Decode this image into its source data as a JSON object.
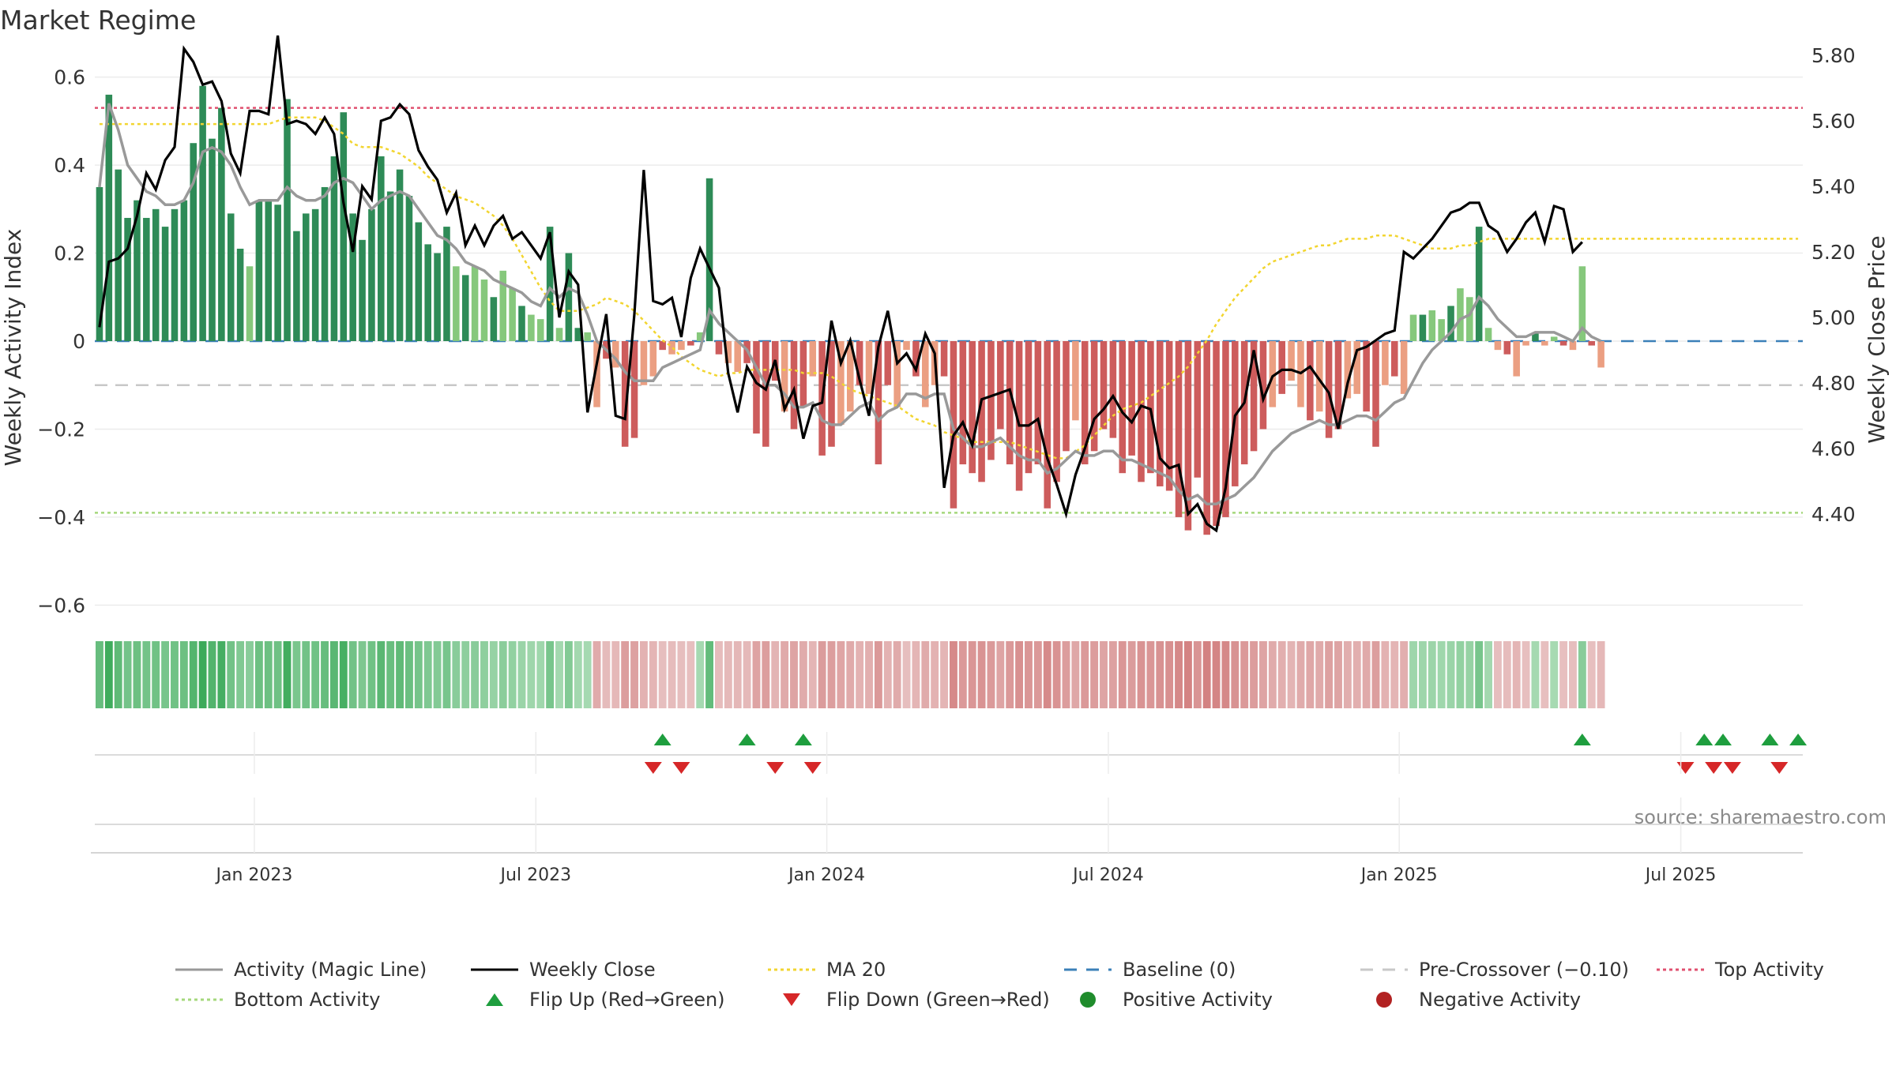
{
  "chart_data": {
    "type": "bar",
    "title": "Market Regime",
    "source": "source: sharemaestro.com",
    "y_left_label": "Weekly Activity Index",
    "y_right_label": "Weekly Close Price",
    "y_left_ticks": [
      "0.6",
      "0.4",
      "0.2",
      "0",
      "−0.2",
      "−0.4",
      "−0.6"
    ],
    "y_left_tick_values": [
      0.6,
      0.4,
      0.2,
      0,
      -0.2,
      -0.4,
      -0.6
    ],
    "y_left_range": [
      -0.63,
      0.63
    ],
    "y_right_ticks": [
      "5.80",
      "5.60",
      "5.40",
      "5.20",
      "5.00",
      "4.80",
      "4.60",
      "4.40"
    ],
    "y_right_tick_values": [
      5.8,
      5.6,
      5.4,
      5.2,
      5.0,
      4.8,
      4.6,
      4.4
    ],
    "y_right_range": [
      4.27,
      5.87
    ],
    "x_ticks": [
      "Jan 2023",
      "Jul 2023",
      "Jan 2024",
      "Jul 2024",
      "Jan 2025",
      "Jul 2025"
    ],
    "x_tick_positions_week": [
      17,
      47,
      78,
      108,
      139,
      169
    ],
    "weeks": 182,
    "reference_lines": {
      "baseline": 0,
      "pre_crossover": -0.1,
      "top_activity": 0.53,
      "bottom_activity": -0.39
    },
    "activity": [
      0.35,
      0.56,
      0.39,
      0.28,
      0.32,
      0.28,
      0.3,
      0.26,
      0.3,
      0.32,
      0.45,
      0.58,
      0.46,
      0.53,
      0.29,
      0.21,
      0.17,
      0.32,
      0.32,
      0.31,
      0.55,
      0.25,
      0.29,
      0.3,
      0.35,
      0.42,
      0.52,
      0.29,
      0.23,
      0.3,
      0.42,
      0.34,
      0.39,
      0.33,
      0.27,
      0.22,
      0.2,
      0.26,
      0.17,
      0.15,
      0.17,
      0.14,
      0.1,
      0.16,
      0.12,
      0.08,
      0.06,
      0.05,
      0.26,
      0.03,
      0.2,
      0.03,
      0.02,
      -0.15,
      -0.04,
      -0.06,
      -0.24,
      -0.22,
      -0.1,
      -0.08,
      -0.02,
      -0.03,
      -0.02,
      -0.01,
      0.02,
      0.37,
      -0.03,
      -0.05,
      -0.07,
      -0.05,
      -0.21,
      -0.24,
      -0.09,
      -0.16,
      -0.2,
      -0.15,
      -0.08,
      -0.26,
      -0.24,
      -0.19,
      -0.16,
      -0.1,
      -0.12,
      -0.28,
      -0.1,
      -0.15,
      -0.02,
      -0.08,
      -0.15,
      -0.1,
      -0.08,
      -0.38,
      -0.28,
      -0.3,
      -0.32,
      -0.27,
      -0.2,
      -0.28,
      -0.34,
      -0.3,
      -0.28,
      -0.38,
      -0.32,
      -0.25,
      -0.18,
      -0.28,
      -0.25,
      -0.2,
      -0.22,
      -0.3,
      -0.26,
      -0.32,
      -0.3,
      -0.33,
      -0.34,
      -0.4,
      -0.43,
      -0.31,
      -0.44,
      -0.42,
      -0.4,
      -0.33,
      -0.28,
      -0.25,
      -0.2,
      -0.15,
      -0.12,
      -0.09,
      -0.15,
      -0.18,
      -0.16,
      -0.22,
      -0.2,
      -0.13,
      -0.12,
      -0.16,
      -0.24,
      -0.1,
      -0.08,
      -0.12,
      0.06,
      0.06,
      0.07,
      0.05,
      0.08,
      0.12,
      0.1,
      0.26,
      0.03,
      -0.02,
      -0.03,
      -0.08,
      -0.01,
      0.02,
      -0.01,
      0.01,
      -0.01,
      -0.02,
      0.17,
      -0.01,
      -0.06
    ],
    "activity_line": [
      0.35,
      0.54,
      0.48,
      0.4,
      0.37,
      0.34,
      0.33,
      0.31,
      0.31,
      0.32,
      0.36,
      0.43,
      0.44,
      0.43,
      0.4,
      0.35,
      0.31,
      0.32,
      0.32,
      0.32,
      0.35,
      0.33,
      0.32,
      0.32,
      0.33,
      0.36,
      0.37,
      0.36,
      0.33,
      0.3,
      0.32,
      0.33,
      0.34,
      0.33,
      0.3,
      0.27,
      0.24,
      0.23,
      0.21,
      0.18,
      0.17,
      0.16,
      0.14,
      0.13,
      0.12,
      0.11,
      0.09,
      0.08,
      0.12,
      0.1,
      0.12,
      0.11,
      0.06,
      0.0,
      -0.02,
      -0.04,
      -0.07,
      -0.09,
      -0.09,
      -0.09,
      -0.06,
      -0.05,
      -0.04,
      -0.03,
      -0.02,
      0.07,
      0.04,
      0.02,
      0.0,
      -0.02,
      -0.06,
      -0.1,
      -0.1,
      -0.12,
      -0.15,
      -0.15,
      -0.14,
      -0.18,
      -0.19,
      -0.19,
      -0.17,
      -0.15,
      -0.14,
      -0.18,
      -0.16,
      -0.15,
      -0.12,
      -0.12,
      -0.13,
      -0.12,
      -0.12,
      -0.2,
      -0.22,
      -0.24,
      -0.24,
      -0.23,
      -0.22,
      -0.24,
      -0.26,
      -0.27,
      -0.27,
      -0.3,
      -0.29,
      -0.27,
      -0.25,
      -0.26,
      -0.26,
      -0.25,
      -0.25,
      -0.27,
      -0.27,
      -0.28,
      -0.29,
      -0.3,
      -0.31,
      -0.34,
      -0.36,
      -0.35,
      -0.37,
      -0.37,
      -0.36,
      -0.35,
      -0.33,
      -0.31,
      -0.28,
      -0.25,
      -0.23,
      -0.21,
      -0.2,
      -0.19,
      -0.18,
      -0.19,
      -0.19,
      -0.18,
      -0.17,
      -0.17,
      -0.18,
      -0.16,
      -0.14,
      -0.13,
      -0.09,
      -0.05,
      -0.02,
      0.0,
      0.02,
      0.05,
      0.06,
      0.1,
      0.08,
      0.05,
      0.03,
      0.01,
      0.01,
      0.02,
      0.02,
      0.02,
      0.01,
      0.0,
      0.03,
      0.01,
      0.0
    ],
    "weekly_close": [
      4.97,
      5.17,
      5.18,
      5.21,
      5.31,
      5.44,
      5.39,
      5.48,
      5.52,
      5.82,
      5.78,
      5.71,
      5.72,
      5.66,
      5.5,
      5.44,
      5.63,
      5.63,
      5.62,
      5.86,
      5.59,
      5.6,
      5.59,
      5.56,
      5.61,
      5.56,
      5.35,
      5.2,
      5.4,
      5.36,
      5.6,
      5.61,
      5.65,
      5.62,
      5.51,
      5.46,
      5.42,
      5.32,
      5.38,
      5.22,
      5.28,
      5.22,
      5.28,
      5.31,
      5.24,
      5.26,
      5.22,
      5.18,
      5.26,
      5.0,
      5.14,
      5.1,
      4.71,
      4.86,
      5.01,
      4.7,
      4.69,
      5.01,
      5.45,
      5.05,
      5.04,
      5.06,
      4.94,
      5.12,
      5.21,
      5.15,
      5.09,
      4.83,
      4.71,
      4.85,
      4.8,
      4.78,
      4.87,
      4.72,
      4.78,
      4.63,
      4.73,
      4.74,
      4.99,
      4.86,
      4.93,
      4.81,
      4.7,
      4.91,
      5.02,
      4.86,
      4.89,
      4.84,
      4.95,
      4.89,
      4.48,
      4.64,
      4.68,
      4.61,
      4.75,
      4.76,
      4.77,
      4.78,
      4.67,
      4.67,
      4.69,
      4.57,
      4.49,
      4.4,
      4.52,
      4.6,
      4.69,
      4.72,
      4.76,
      4.71,
      4.68,
      4.73,
      4.72,
      4.57,
      4.54,
      4.55,
      4.4,
      4.43,
      4.37,
      4.35,
      4.48,
      4.7,
      4.74,
      4.9,
      4.75,
      4.82,
      4.84,
      4.84,
      4.83,
      4.85,
      4.81,
      4.77,
      4.66,
      4.8,
      4.9,
      4.91,
      4.93,
      4.95,
      4.96,
      5.2,
      5.18,
      5.21,
      5.24,
      5.28,
      5.32,
      5.33,
      5.35,
      5.35,
      5.28,
      5.26,
      5.2,
      5.24,
      5.29,
      5.32,
      5.23,
      5.34,
      5.33,
      5.2,
      5.23
    ],
    "ma20": [
      5.59,
      5.59,
      5.59,
      5.59,
      5.59,
      5.59,
      5.59,
      5.59,
      5.59,
      5.59,
      5.59,
      5.59,
      5.59,
      5.59,
      5.59,
      5.59,
      5.59,
      5.59,
      5.59,
      5.6,
      5.61,
      5.61,
      5.61,
      5.61,
      5.6,
      5.58,
      5.56,
      5.53,
      5.52,
      5.52,
      5.52,
      5.51,
      5.5,
      5.48,
      5.46,
      5.43,
      5.41,
      5.39,
      5.37,
      5.36,
      5.35,
      5.33,
      5.31,
      5.28,
      5.24,
      5.19,
      5.14,
      5.09,
      5.05,
      5.02,
      5.02,
      5.02,
      5.03,
      5.04,
      5.06,
      5.05,
      5.04,
      5.02,
      4.99,
      4.96,
      4.93,
      4.91,
      4.88,
      4.86,
      4.84,
      4.83,
      4.82,
      4.83,
      4.83,
      4.84,
      4.84,
      4.84,
      4.84,
      4.84,
      4.84,
      4.83,
      4.83,
      4.83,
      4.82,
      4.8,
      4.78,
      4.77,
      4.76,
      4.75,
      4.74,
      4.73,
      4.71,
      4.69,
      4.68,
      4.67,
      4.65,
      4.64,
      4.63,
      4.62,
      4.62,
      4.62,
      4.62,
      4.62,
      4.61,
      4.6,
      4.59,
      4.58,
      4.57,
      4.57,
      4.59,
      4.61,
      4.64,
      4.67,
      4.7,
      4.72,
      4.73,
      4.74,
      4.76,
      4.78,
      4.8,
      4.82,
      4.85,
      4.89,
      4.93,
      4.98,
      5.02,
      5.06,
      5.09,
      5.12,
      5.15,
      5.17,
      5.18,
      5.19,
      5.2,
      5.21,
      5.22,
      5.22,
      5.23,
      5.24,
      5.24,
      5.24,
      5.25,
      5.25,
      5.25,
      5.24,
      5.23,
      5.22,
      5.21,
      5.21,
      5.21,
      5.22,
      5.22,
      5.23,
      5.24,
      5.24,
      5.24,
      5.24,
      5.24,
      5.24,
      5.24,
      5.24,
      5.24,
      5.24,
      5.24,
      5.24,
      5.24,
      5.24,
      5.24,
      5.24,
      5.24,
      5.24,
      5.24,
      5.24,
      5.24,
      5.24,
      5.24,
      5.24,
      5.24,
      5.24,
      5.24,
      5.24,
      5.24,
      5.24,
      5.24,
      5.24,
      5.24,
      5.24
    ],
    "flip_up_weeks": [
      60,
      69,
      75,
      158,
      171,
      173,
      178,
      181
    ],
    "flip_down_weeks": [
      59,
      62,
      72,
      76,
      169,
      172,
      174,
      179
    ],
    "legend": [
      {
        "label": "Activity (Magic Line)",
        "style": "solid-line",
        "color": "#999999"
      },
      {
        "label": "Weekly Close",
        "style": "solid-line",
        "color": "#000000"
      },
      {
        "label": "MA 20",
        "style": "dotted-line",
        "color": "#f2d530"
      },
      {
        "label": "Baseline (0)",
        "style": "dashed-line",
        "color": "#3b80b8"
      },
      {
        "label": "Pre-Crossover (−0.10)",
        "style": "dashed-line",
        "color": "#c8c8c8"
      },
      {
        "label": "Top Activity",
        "style": "dotted-line",
        "color": "#e0506f"
      },
      {
        "label": "Bottom Activity",
        "style": "dotted-line",
        "color": "#a5d87c"
      },
      {
        "label": "Flip Up (Red→Green)",
        "style": "triangle-up",
        "color": "#1e9e3e"
      },
      {
        "label": "Flip Down (Green→Red)",
        "style": "triangle-down",
        "color": "#d62728"
      },
      {
        "label": "Positive Activity",
        "style": "dot",
        "color": "#1f8c2c"
      },
      {
        "label": "Negative Activity",
        "style": "dot",
        "color": "#b22222"
      }
    ],
    "colors": {
      "pos_strong": "#2e8b57",
      "pos_light": "#86c87c",
      "neg_strong": "#cd5c5c",
      "neg_light": "#eb9f82",
      "close": "#000000",
      "magic": "#999999",
      "ma": "#f2d530"
    },
    "grid": "on"
  }
}
